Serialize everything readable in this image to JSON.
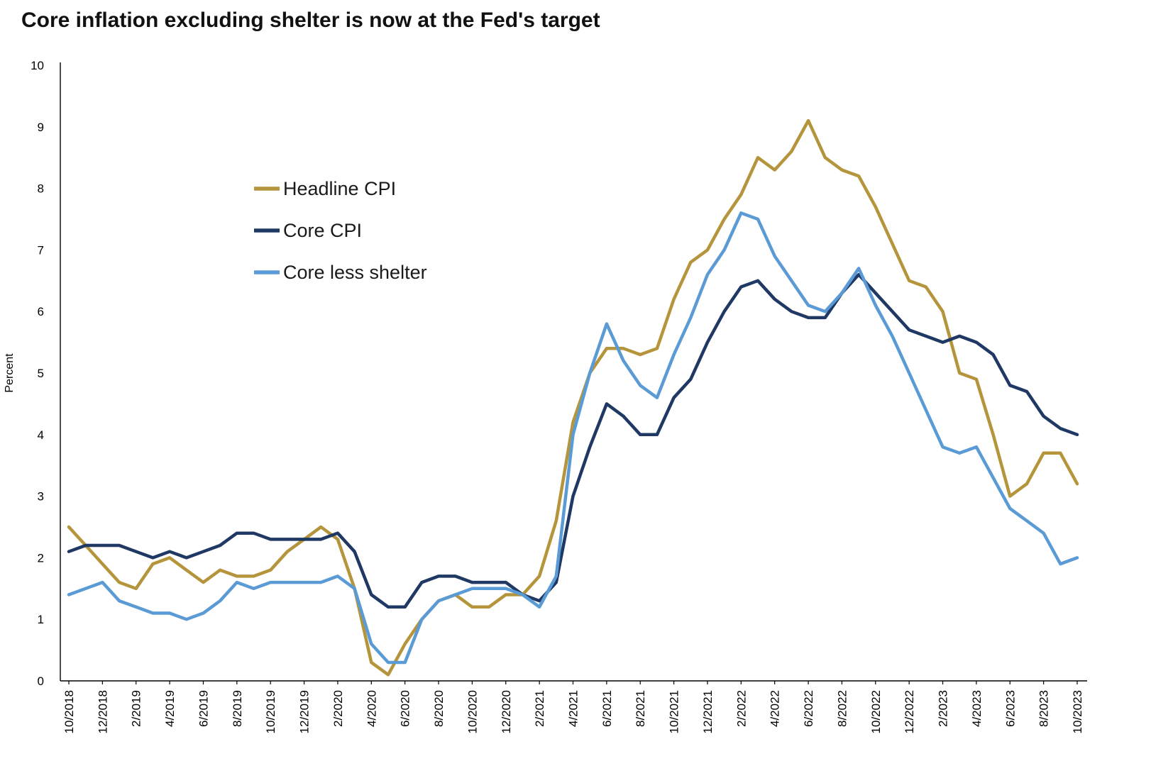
{
  "title": "Core inflation excluding shelter is now at the Fed's target",
  "chart_data": {
    "type": "line",
    "title": "Core inflation excluding shelter is now at the Fed's target",
    "xlabel": "",
    "ylabel": "Percent",
    "ylim": [
      0,
      10
    ],
    "ytick_step": 1,
    "grid": false,
    "legend_position": "upper-left-inside",
    "x_tick_every": 2,
    "x": [
      "10/2018",
      "11/2018",
      "12/2018",
      "1/2019",
      "2/2019",
      "3/2019",
      "4/2019",
      "5/2019",
      "6/2019",
      "7/2019",
      "8/2019",
      "9/2019",
      "10/2019",
      "11/2019",
      "12/2019",
      "1/2020",
      "2/2020",
      "3/2020",
      "4/2020",
      "5/2020",
      "6/2020",
      "7/2020",
      "8/2020",
      "9/2020",
      "10/2020",
      "11/2020",
      "12/2020",
      "1/2021",
      "2/2021",
      "3/2021",
      "4/2021",
      "5/2021",
      "6/2021",
      "7/2021",
      "8/2021",
      "9/2021",
      "10/2021",
      "11/2021",
      "12/2021",
      "1/2022",
      "2/2022",
      "3/2022",
      "4/2022",
      "5/2022",
      "6/2022",
      "7/2022",
      "8/2022",
      "9/2022",
      "10/2022",
      "11/2022",
      "12/2022",
      "1/2023",
      "2/2023",
      "3/2023",
      "4/2023",
      "5/2023",
      "6/2023",
      "7/2023",
      "8/2023",
      "9/2023",
      "10/2023"
    ],
    "series": [
      {
        "name": "Headline CPI",
        "color": "#B5953C",
        "values": [
          2.5,
          2.2,
          1.9,
          1.6,
          1.5,
          1.9,
          2.0,
          1.8,
          1.6,
          1.8,
          1.7,
          1.7,
          1.8,
          2.1,
          2.3,
          2.5,
          2.3,
          1.5,
          0.3,
          0.1,
          0.6,
          1.0,
          1.3,
          1.4,
          1.2,
          1.2,
          1.4,
          1.4,
          1.7,
          2.6,
          4.2,
          5.0,
          5.4,
          5.4,
          5.3,
          5.4,
          6.2,
          6.8,
          7.0,
          7.5,
          7.9,
          8.5,
          8.3,
          8.6,
          9.1,
          8.5,
          8.3,
          8.2,
          7.7,
          7.1,
          6.5,
          6.4,
          6.0,
          5.0,
          4.9,
          4.0,
          3.0,
          3.2,
          3.7,
          3.7,
          3.2
        ]
      },
      {
        "name": "Core CPI",
        "color": "#1F3864",
        "values": [
          2.1,
          2.2,
          2.2,
          2.2,
          2.1,
          2.0,
          2.1,
          2.0,
          2.1,
          2.2,
          2.4,
          2.4,
          2.3,
          2.3,
          2.3,
          2.3,
          2.4,
          2.1,
          1.4,
          1.2,
          1.2,
          1.6,
          1.7,
          1.7,
          1.6,
          1.6,
          1.6,
          1.4,
          1.3,
          1.6,
          3.0,
          3.8,
          4.5,
          4.3,
          4.0,
          4.0,
          4.6,
          4.9,
          5.5,
          6.0,
          6.4,
          6.5,
          6.2,
          6.0,
          5.9,
          5.9,
          6.3,
          6.6,
          6.3,
          6.0,
          5.7,
          5.6,
          5.5,
          5.6,
          5.5,
          5.3,
          4.8,
          4.7,
          4.3,
          4.1,
          4.0
        ]
      },
      {
        "name": "Core less shelter",
        "color": "#5B9BD5",
        "values": [
          1.4,
          1.5,
          1.6,
          1.3,
          1.2,
          1.1,
          1.1,
          1.0,
          1.1,
          1.3,
          1.6,
          1.5,
          1.6,
          1.6,
          1.6,
          1.6,
          1.7,
          1.5,
          0.6,
          0.3,
          0.3,
          1.0,
          1.3,
          1.4,
          1.5,
          1.5,
          1.5,
          1.4,
          1.2,
          1.7,
          4.0,
          5.0,
          5.8,
          5.2,
          4.8,
          4.6,
          5.3,
          5.9,
          6.6,
          7.0,
          7.6,
          7.5,
          6.9,
          6.5,
          6.1,
          6.0,
          6.3,
          6.7,
          6.1,
          5.6,
          5.0,
          4.4,
          3.8,
          3.7,
          3.8,
          3.3,
          2.8,
          2.6,
          2.4,
          1.9,
          2.0
        ]
      }
    ],
    "axis_color": "#000000",
    "tick_label_color": "#000000"
  }
}
